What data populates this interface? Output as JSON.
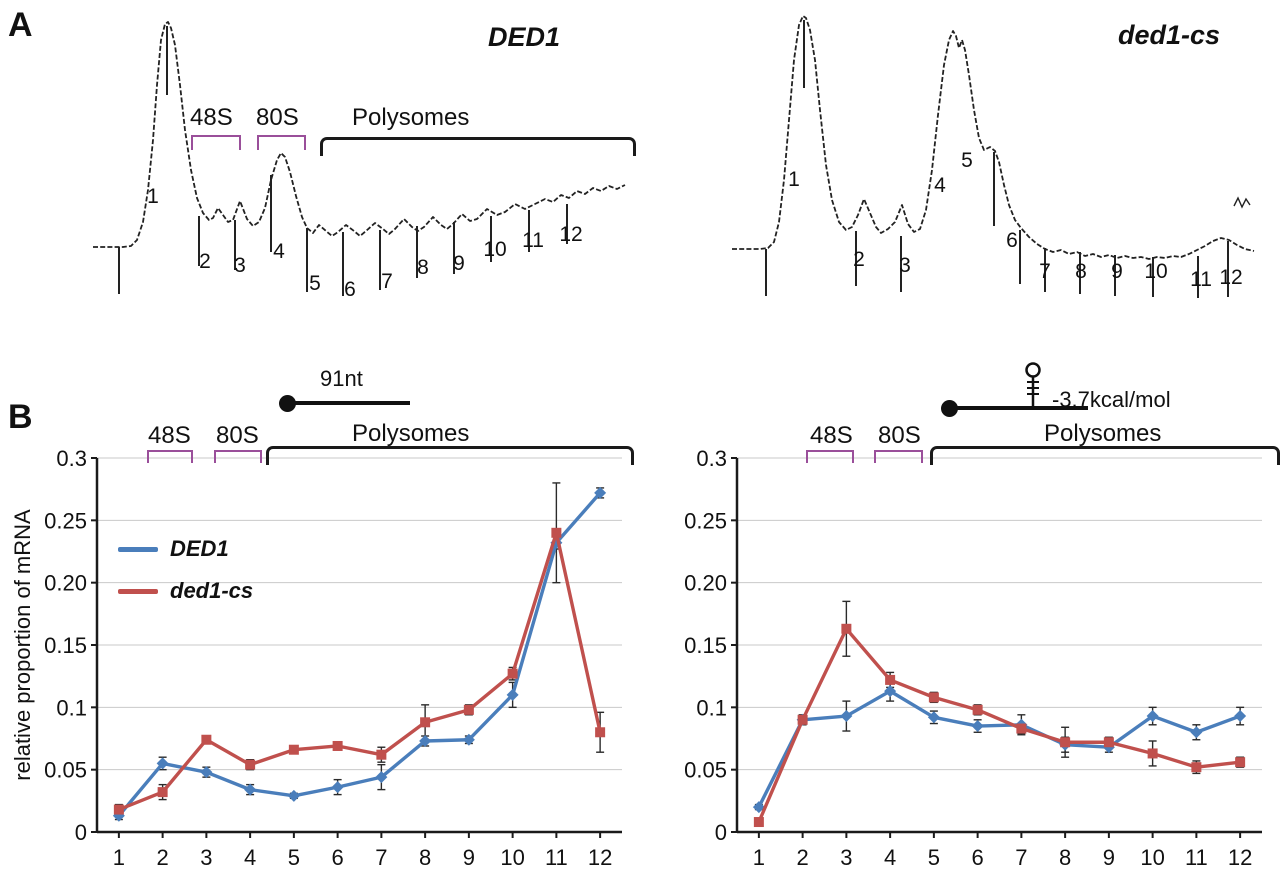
{
  "panels": {
    "a": "A",
    "b": "B"
  },
  "colors": {
    "blue": "#4a7ebb",
    "red": "#c0504d",
    "bracket_small": "#9a4f9a",
    "bracket_big": "#1a1a1a",
    "trace": "#222222",
    "grid": "#c9c9c9",
    "axis": "#1a1a1a",
    "error": "#2b2b2b"
  },
  "panel_b": {
    "y_axis_label": "relative proportion of mRNA"
  },
  "chart_data": [
    {
      "type": "profile",
      "id": "a-left",
      "title": "DED1",
      "annotations": {
        "s48": "48S",
        "s80": "80S",
        "poly": "Polysomes"
      },
      "trace": [
        [
          8,
          247
        ],
        [
          38,
          247
        ],
        [
          46,
          246
        ],
        [
          52,
          240
        ],
        [
          58,
          222
        ],
        [
          63,
          190
        ],
        [
          68,
          140
        ],
        [
          72,
          85
        ],
        [
          76,
          40
        ],
        [
          80,
          24
        ],
        [
          83,
          22
        ],
        [
          86,
          28
        ],
        [
          90,
          45
        ],
        [
          95,
          85
        ],
        [
          100,
          130
        ],
        [
          106,
          170
        ],
        [
          112,
          198
        ],
        [
          118,
          213
        ],
        [
          124,
          220
        ],
        [
          128,
          218
        ],
        [
          133,
          208
        ],
        [
          138,
          215
        ],
        [
          143,
          222
        ],
        [
          148,
          220
        ],
        [
          155,
          201
        ],
        [
          162,
          219
        ],
        [
          168,
          226
        ],
        [
          174,
          222
        ],
        [
          180,
          208
        ],
        [
          186,
          180
        ],
        [
          192,
          160
        ],
        [
          196,
          153
        ],
        [
          200,
          157
        ],
        [
          205,
          172
        ],
        [
          211,
          196
        ],
        [
          217,
          217
        ],
        [
          222,
          228
        ],
        [
          228,
          233
        ],
        [
          234,
          225
        ],
        [
          241,
          231
        ],
        [
          247,
          236
        ],
        [
          253,
          232
        ],
        [
          261,
          225
        ],
        [
          269,
          231
        ],
        [
          275,
          236
        ],
        [
          281,
          231
        ],
        [
          290,
          223
        ],
        [
          298,
          229
        ],
        [
          304,
          234
        ],
        [
          310,
          229
        ],
        [
          319,
          219
        ],
        [
          327,
          227
        ],
        [
          333,
          231
        ],
        [
          339,
          227
        ],
        [
          348,
          217
        ],
        [
          356,
          225
        ],
        [
          362,
          229
        ],
        [
          368,
          224
        ],
        [
          377,
          214
        ],
        [
          385,
          221
        ],
        [
          392,
          219
        ],
        [
          402,
          209
        ],
        [
          412,
          215
        ],
        [
          420,
          212
        ],
        [
          430,
          204
        ],
        [
          440,
          209
        ],
        [
          450,
          204
        ],
        [
          460,
          199
        ],
        [
          468,
          202
        ],
        [
          476,
          195
        ],
        [
          484,
          198
        ],
        [
          492,
          191
        ],
        [
          500,
          194
        ],
        [
          508,
          188
        ],
        [
          516,
          191
        ],
        [
          524,
          186
        ],
        [
          532,
          189
        ],
        [
          540,
          185
        ]
      ],
      "ticks": [
        [
          34,
          247,
          294
        ],
        [
          82,
          26,
          95
        ],
        [
          114,
          216,
          266
        ],
        [
          150,
          220,
          270
        ],
        [
          186,
          175,
          252
        ],
        [
          222,
          228,
          292
        ],
        [
          258,
          232,
          296
        ],
        [
          295,
          230,
          290
        ],
        [
          332,
          226,
          278
        ],
        [
          369,
          222,
          274
        ],
        [
          406,
          216,
          262
        ],
        [
          444,
          210,
          252
        ],
        [
          482,
          204,
          244
        ]
      ],
      "fractions": [
        [
          "1",
          68,
          203
        ],
        [
          "2",
          120,
          268
        ],
        [
          "3",
          155,
          272
        ],
        [
          "4",
          194,
          258
        ],
        [
          "5",
          230,
          290
        ],
        [
          "6",
          265,
          296
        ],
        [
          "7",
          302,
          288
        ],
        [
          "8",
          338,
          274
        ],
        [
          "9",
          374,
          270
        ],
        [
          "10",
          410,
          256
        ],
        [
          "11",
          448,
          247
        ],
        [
          "12",
          486,
          241
        ]
      ]
    },
    {
      "type": "profile",
      "id": "a-right",
      "title": "ded1-cs",
      "trace": [
        [
          14,
          249
        ],
        [
          42,
          249
        ],
        [
          50,
          248
        ],
        [
          56,
          242
        ],
        [
          61,
          222
        ],
        [
          66,
          180
        ],
        [
          71,
          120
        ],
        [
          76,
          60
        ],
        [
          81,
          25
        ],
        [
          85,
          16
        ],
        [
          88,
          18
        ],
        [
          92,
          30
        ],
        [
          97,
          60
        ],
        [
          102,
          110
        ],
        [
          108,
          165
        ],
        [
          114,
          200
        ],
        [
          121,
          222
        ],
        [
          128,
          230
        ],
        [
          134,
          227
        ],
        [
          140,
          215
        ],
        [
          146,
          199
        ],
        [
          152,
          213
        ],
        [
          158,
          227
        ],
        [
          163,
          233
        ],
        [
          170,
          229
        ],
        [
          177,
          222
        ],
        [
          184,
          205
        ],
        [
          190,
          224
        ],
        [
          196,
          232
        ],
        [
          202,
          229
        ],
        [
          208,
          210
        ],
        [
          214,
          170
        ],
        [
          220,
          115
        ],
        [
          226,
          65
        ],
        [
          231,
          40
        ],
        [
          235,
          31
        ],
        [
          238,
          36
        ],
        [
          241,
          48
        ],
        [
          244,
          40
        ],
        [
          247,
          50
        ],
        [
          251,
          75
        ],
        [
          256,
          110
        ],
        [
          261,
          138
        ],
        [
          266,
          150
        ],
        [
          272,
          147
        ],
        [
          277,
          151
        ],
        [
          281,
          162
        ],
        [
          286,
          185
        ],
        [
          291,
          205
        ],
        [
          297,
          220
        ],
        [
          303,
          228
        ],
        [
          311,
          237
        ],
        [
          319,
          244
        ],
        [
          327,
          249
        ],
        [
          335,
          252
        ],
        [
          343,
          250
        ],
        [
          351,
          254
        ],
        [
          359,
          252
        ],
        [
          367,
          256
        ],
        [
          375,
          254
        ],
        [
          383,
          257
        ],
        [
          391,
          255
        ],
        [
          399,
          258
        ],
        [
          407,
          256
        ],
        [
          415,
          258
        ],
        [
          423,
          257
        ],
        [
          431,
          259
        ],
        [
          439,
          257
        ],
        [
          447,
          258
        ],
        [
          455,
          256
        ],
        [
          463,
          257
        ],
        [
          471,
          254
        ],
        [
          479,
          250
        ],
        [
          487,
          246
        ],
        [
          495,
          241
        ],
        [
          503,
          238
        ],
        [
          511,
          240
        ],
        [
          519,
          245
        ],
        [
          527,
          249
        ],
        [
          536,
          251
        ]
      ],
      "squiggle": [
        [
          516,
          206
        ],
        [
          520,
          198
        ],
        [
          524,
          207
        ],
        [
          528,
          199
        ],
        [
          532,
          205
        ]
      ],
      "ticks": [
        [
          48,
          249,
          296
        ],
        [
          86,
          20,
          88
        ],
        [
          138,
          231,
          286
        ],
        [
          183,
          236,
          292
        ],
        [
          276,
          152,
          226
        ],
        [
          302,
          230,
          284
        ],
        [
          327,
          248,
          292
        ],
        [
          362,
          252,
          294
        ],
        [
          397,
          255,
          296
        ],
        [
          435,
          257,
          297
        ],
        [
          480,
          256,
          298
        ],
        [
          510,
          241,
          297
        ]
      ],
      "fractions": [
        [
          "1",
          76,
          186
        ],
        [
          "2",
          141,
          266
        ],
        [
          "3",
          187,
          272
        ],
        [
          "4",
          222,
          192
        ],
        [
          "5",
          249,
          167
        ],
        [
          "6",
          294,
          247
        ],
        [
          "7",
          327,
          278
        ],
        [
          "8",
          363,
          278
        ],
        [
          "9",
          399,
          278
        ],
        [
          "10",
          438,
          278
        ],
        [
          "11",
          483,
          286
        ],
        [
          "12",
          513,
          284
        ]
      ]
    },
    {
      "type": "line",
      "id": "b-left",
      "construct_label": "91nt",
      "annotations": {
        "s48": "48S",
        "s80": "80S",
        "poly": "Polysomes"
      },
      "x_categories": [
        "1",
        "2",
        "3",
        "4",
        "5",
        "6",
        "7",
        "8",
        "9",
        "10",
        "11",
        "12"
      ],
      "ylim": [
        0,
        0.3
      ],
      "y_ticks": [
        {
          "v": 0,
          "label": "0"
        },
        {
          "v": 0.05,
          "label": "0.05"
        },
        {
          "v": 0.1,
          "label": "0.1"
        },
        {
          "v": 0.15,
          "label": "0.15"
        },
        {
          "v": 0.2,
          "label": "0.20"
        },
        {
          "v": 0.25,
          "label": "0.25"
        },
        {
          "v": 0.3,
          "label": "0.3"
        }
      ],
      "series": [
        {
          "name": "DED1",
          "color": "#4a7ebb",
          "marker": "diamond",
          "values": [
            0.013,
            0.055,
            0.048,
            0.034,
            0.029,
            0.036,
            0.044,
            0.073,
            0.074,
            0.11,
            0.232,
            0.272
          ],
          "errors": [
            0.003,
            0.005,
            0.004,
            0.004,
            0.002,
            0.006,
            0.01,
            0.004,
            0.003,
            0.01,
            0.005,
            0.004
          ]
        },
        {
          "name": "ded1-cs",
          "color": "#c0504d",
          "marker": "square",
          "values": [
            0.018,
            0.032,
            0.074,
            0.054,
            0.066,
            0.069,
            0.062,
            0.088,
            0.098,
            0.127,
            0.24,
            0.08
          ],
          "errors": [
            0.004,
            0.006,
            0.003,
            0.004,
            0.003,
            0.003,
            0.006,
            0.014,
            0.004,
            0.005,
            0.04,
            0.016
          ]
        }
      ]
    },
    {
      "type": "line",
      "id": "b-right",
      "construct_label": "-3.7kcal/mol",
      "annotations": {
        "s48": "48S",
        "s80": "80S",
        "poly": "Polysomes"
      },
      "x_categories": [
        "1",
        "2",
        "3",
        "4",
        "5",
        "6",
        "7",
        "8",
        "9",
        "10",
        "11",
        "12"
      ],
      "ylim": [
        0,
        0.3
      ],
      "y_ticks": [
        {
          "v": 0,
          "label": "0"
        },
        {
          "v": 0.05,
          "label": "0.05"
        },
        {
          "v": 0.1,
          "label": "0.1"
        },
        {
          "v": 0.15,
          "label": "0.15"
        },
        {
          "v": 0.2,
          "label": "0.20"
        },
        {
          "v": 0.25,
          "label": "0.25"
        },
        {
          "v": 0.3,
          "label": "0.3"
        }
      ],
      "series": [
        {
          "name": "DED1",
          "color": "#4a7ebb",
          "marker": "diamond",
          "values": [
            0.02,
            0.09,
            0.093,
            0.113,
            0.092,
            0.085,
            0.086,
            0.07,
            0.068,
            0.093,
            0.08,
            0.093
          ],
          "errors": [
            0.002,
            0.003,
            0.012,
            0.008,
            0.005,
            0.005,
            0.008,
            0.006,
            0.004,
            0.007,
            0.006,
            0.007
          ]
        },
        {
          "name": "ded1-cs",
          "color": "#c0504d",
          "marker": "square",
          "values": [
            0.008,
            0.09,
            0.163,
            0.122,
            0.108,
            0.098,
            0.083,
            0.072,
            0.072,
            0.063,
            0.052,
            0.056
          ],
          "errors": [
            0.002,
            0.004,
            0.022,
            0.006,
            0.004,
            0.004,
            0.004,
            0.012,
            0.004,
            0.01,
            0.005,
            0.004
          ]
        }
      ]
    }
  ]
}
